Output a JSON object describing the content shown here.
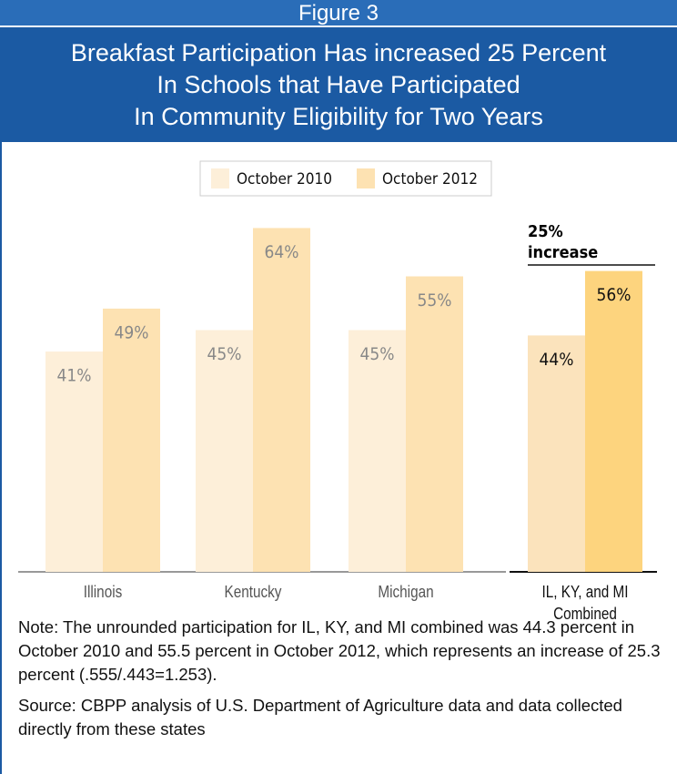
{
  "chart_data": {
    "type": "bar",
    "figure_label": "Figure 3",
    "title": [
      "Breakfast Participation Has increased 25 Percent",
      "In Schools that Have Participated",
      "In Community Eligibility for Two Years"
    ],
    "categories": [
      "Illinois",
      "Kentucky",
      "Michigan",
      "IL, KY, and MI Combined"
    ],
    "series": [
      {
        "name": "October 2010",
        "color": "#fdefd9",
        "values": [
          41,
          45,
          45,
          44
        ],
        "value_labels": [
          "41%",
          "45%",
          "45%",
          "44%"
        ]
      },
      {
        "name": "October 2012",
        "color": "#fde2b2",
        "values": [
          49,
          64,
          55,
          56
        ],
        "value_labels": [
          "49%",
          "64%",
          "55%",
          "56%"
        ]
      }
    ],
    "annotation": [
      "25%",
      "increase"
    ],
    "note": "Note: The unrounded participation for IL, KY, and MI combined was 44.3 percent in October 2010 and 55.5 percent in October 2012, which represents an increase of 25.3 percent (.555/.443=1.253).",
    "source": "Source:  CBPP analysis of U.S. Department of Agriculture data and data collected directly from these states"
  }
}
